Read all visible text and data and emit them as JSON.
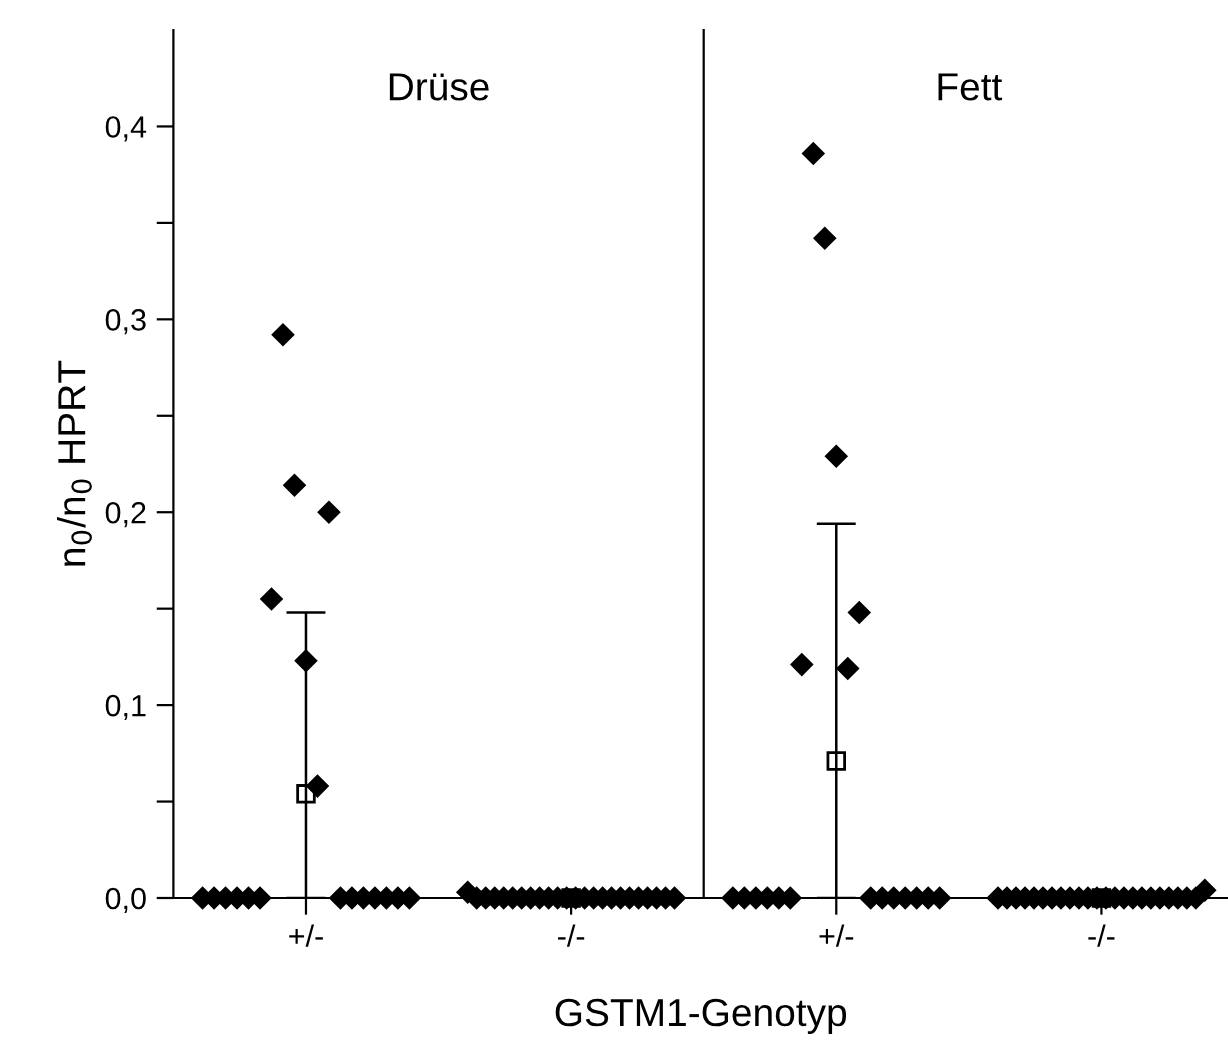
{
  "chart_data": [
    {
      "type": "scatter",
      "title": "Drüse",
      "ylabel": "n$_{0}$/n$_{0}$ HPRT",
      "xlabel": "GSTM1-Genotyp",
      "categories": [
        "+/-",
        "-/-"
      ],
      "ylim": [
        0,
        0.45
      ],
      "yticks": [
        {
          "value": 0,
          "label": "0,0"
        },
        {
          "value": 0.05,
          "label": null
        },
        {
          "value": 0.1,
          "label": "0,1"
        },
        {
          "value": 0.15,
          "label": null
        },
        {
          "value": 0.2,
          "label": "0,2"
        },
        {
          "value": 0.25,
          "label": null
        },
        {
          "value": 0.3,
          "label": "0,3"
        },
        {
          "value": 0.35,
          "label": null
        },
        {
          "value": 0.4,
          "label": "0,4"
        }
      ],
      "grid": false,
      "legend": false,
      "marker": "diamond",
      "series": [
        {
          "color": "#000000",
          "values": [
            0,
            0.003
          ]
        },
        {
          "color": "#000000",
          "values": [
            0,
            0
          ]
        },
        {
          "color": "#000000",
          "values": [
            0,
            0
          ]
        },
        {
          "color": "#000000",
          "values": [
            0,
            0
          ]
        },
        {
          "color": "#000000",
          "values": [
            0,
            0
          ]
        },
        {
          "color": "#000000",
          "values": [
            0,
            0
          ]
        },
        {
          "color": "#000000",
          "values": [
            0.155,
            0
          ]
        },
        {
          "color": "#000000",
          "values": [
            0.292,
            0
          ]
        },
        {
          "color": "#000000",
          "values": [
            0.214,
            0
          ]
        },
        {
          "color": "#000000",
          "values": [
            0.123,
            0
          ]
        },
        {
          "color": "#000000",
          "values": [
            0.058,
            0
          ]
        },
        {
          "color": "#000000",
          "values": [
            0.2,
            0
          ]
        },
        {
          "color": "#000000",
          "values": [
            0,
            0
          ]
        },
        {
          "color": "#000000",
          "values": [
            0,
            0
          ]
        },
        {
          "color": "#000000",
          "values": [
            0,
            0
          ]
        },
        {
          "color": "#000000",
          "values": [
            0,
            0
          ]
        },
        {
          "color": "#000000",
          "values": [
            0,
            0
          ]
        },
        {
          "color": "#000000",
          "values": [
            0,
            0
          ]
        },
        {
          "color": "#000000",
          "values": [
            0,
            0
          ]
        },
        {
          "color": "#000000",
          "values": [
            null,
            0
          ]
        },
        {
          "color": "#000000",
          "values": [
            null,
            0
          ]
        },
        {
          "color": "#000000",
          "values": [
            null,
            0
          ]
        },
        {
          "color": "#000000",
          "values": [
            null,
            0
          ]
        },
        {
          "color": "#000000",
          "values": [
            null,
            0
          ]
        },
        {
          "color": "#000000",
          "marker": "square",
          "values": [
            0.054,
            0
          ],
          "errors": [
            [
              0,
              0.148
            ],
            null
          ]
        }
      ]
    },
    {
      "type": "scatter",
      "title": "Fett",
      "tick_labels": "x",
      "categories": [
        "+/-",
        "-/-"
      ],
      "ylim": [
        0,
        0.45
      ],
      "grid": false,
      "legend": false,
      "marker": "diamond",
      "series": [
        {
          "color": "#000000",
          "values": [
            0,
            0
          ]
        },
        {
          "color": "#000000",
          "values": [
            0,
            0
          ]
        },
        {
          "color": "#000000",
          "values": [
            0,
            0
          ]
        },
        {
          "color": "#000000",
          "values": [
            0,
            0
          ]
        },
        {
          "color": "#000000",
          "values": [
            0,
            0
          ]
        },
        {
          "color": "#000000",
          "values": [
            0,
            0
          ]
        },
        {
          "color": "#000000",
          "values": [
            0.121,
            0
          ]
        },
        {
          "color": "#000000",
          "values": [
            0.386,
            0
          ]
        },
        {
          "color": "#000000",
          "values": [
            0.342,
            0
          ]
        },
        {
          "color": "#000000",
          "values": [
            0.229,
            0
          ]
        },
        {
          "color": "#000000",
          "values": [
            0.119,
            0
          ]
        },
        {
          "color": "#000000",
          "values": [
            0.148,
            0
          ]
        },
        {
          "color": "#000000",
          "values": [
            0,
            0
          ]
        },
        {
          "color": "#000000",
          "values": [
            0,
            0
          ]
        },
        {
          "color": "#000000",
          "values": [
            0,
            0
          ]
        },
        {
          "color": "#000000",
          "values": [
            0,
            0
          ]
        },
        {
          "color": "#000000",
          "values": [
            0,
            0
          ]
        },
        {
          "color": "#000000",
          "values": [
            0,
            0
          ]
        },
        {
          "color": "#000000",
          "values": [
            0,
            0
          ]
        },
        {
          "color": "#000000",
          "values": [
            null,
            0
          ]
        },
        {
          "color": "#000000",
          "values": [
            null,
            0
          ]
        },
        {
          "color": "#000000",
          "values": [
            null,
            0
          ]
        },
        {
          "color": "#000000",
          "values": [
            null,
            0
          ]
        },
        {
          "color": "#000000",
          "values": [
            null,
            0.004
          ]
        },
        {
          "color": "#000000",
          "marker": "square",
          "values": [
            0.071,
            0
          ],
          "errors": [
            [
              0,
              0.194
            ],
            null
          ]
        }
      ]
    }
  ]
}
